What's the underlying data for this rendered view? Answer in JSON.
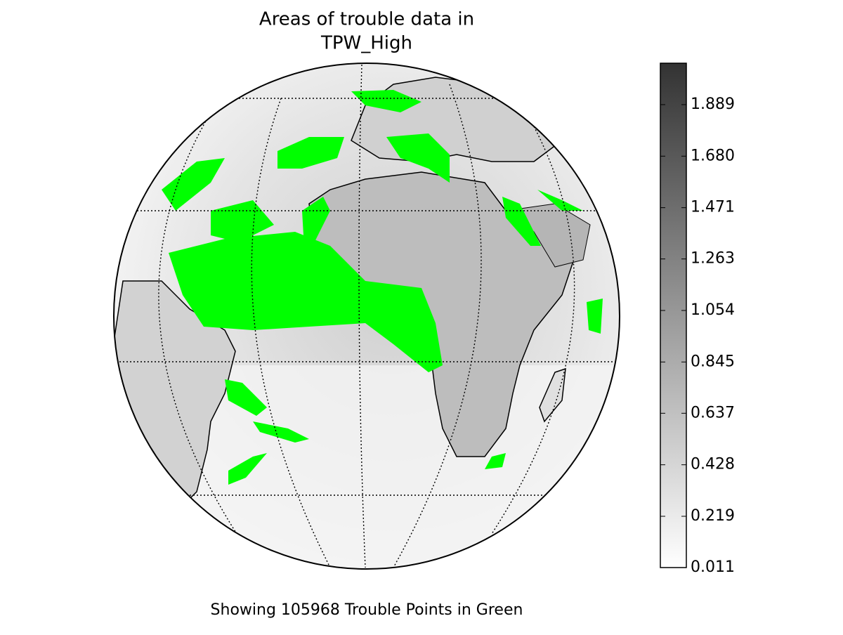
{
  "title": [
    "Areas of trouble data in",
    "TPW_High"
  ],
  "caption": "Showing 105968 Trouble Points in Green",
  "colorbar": {
    "lim": [
      0.011,
      2.057
    ],
    "ticks": [
      0.011,
      0.219,
      0.428,
      0.637,
      0.845,
      1.054,
      1.263,
      1.471,
      {
        "value": 1.68,
        "label": "1.680"
      },
      1.889
    ]
  }
}
